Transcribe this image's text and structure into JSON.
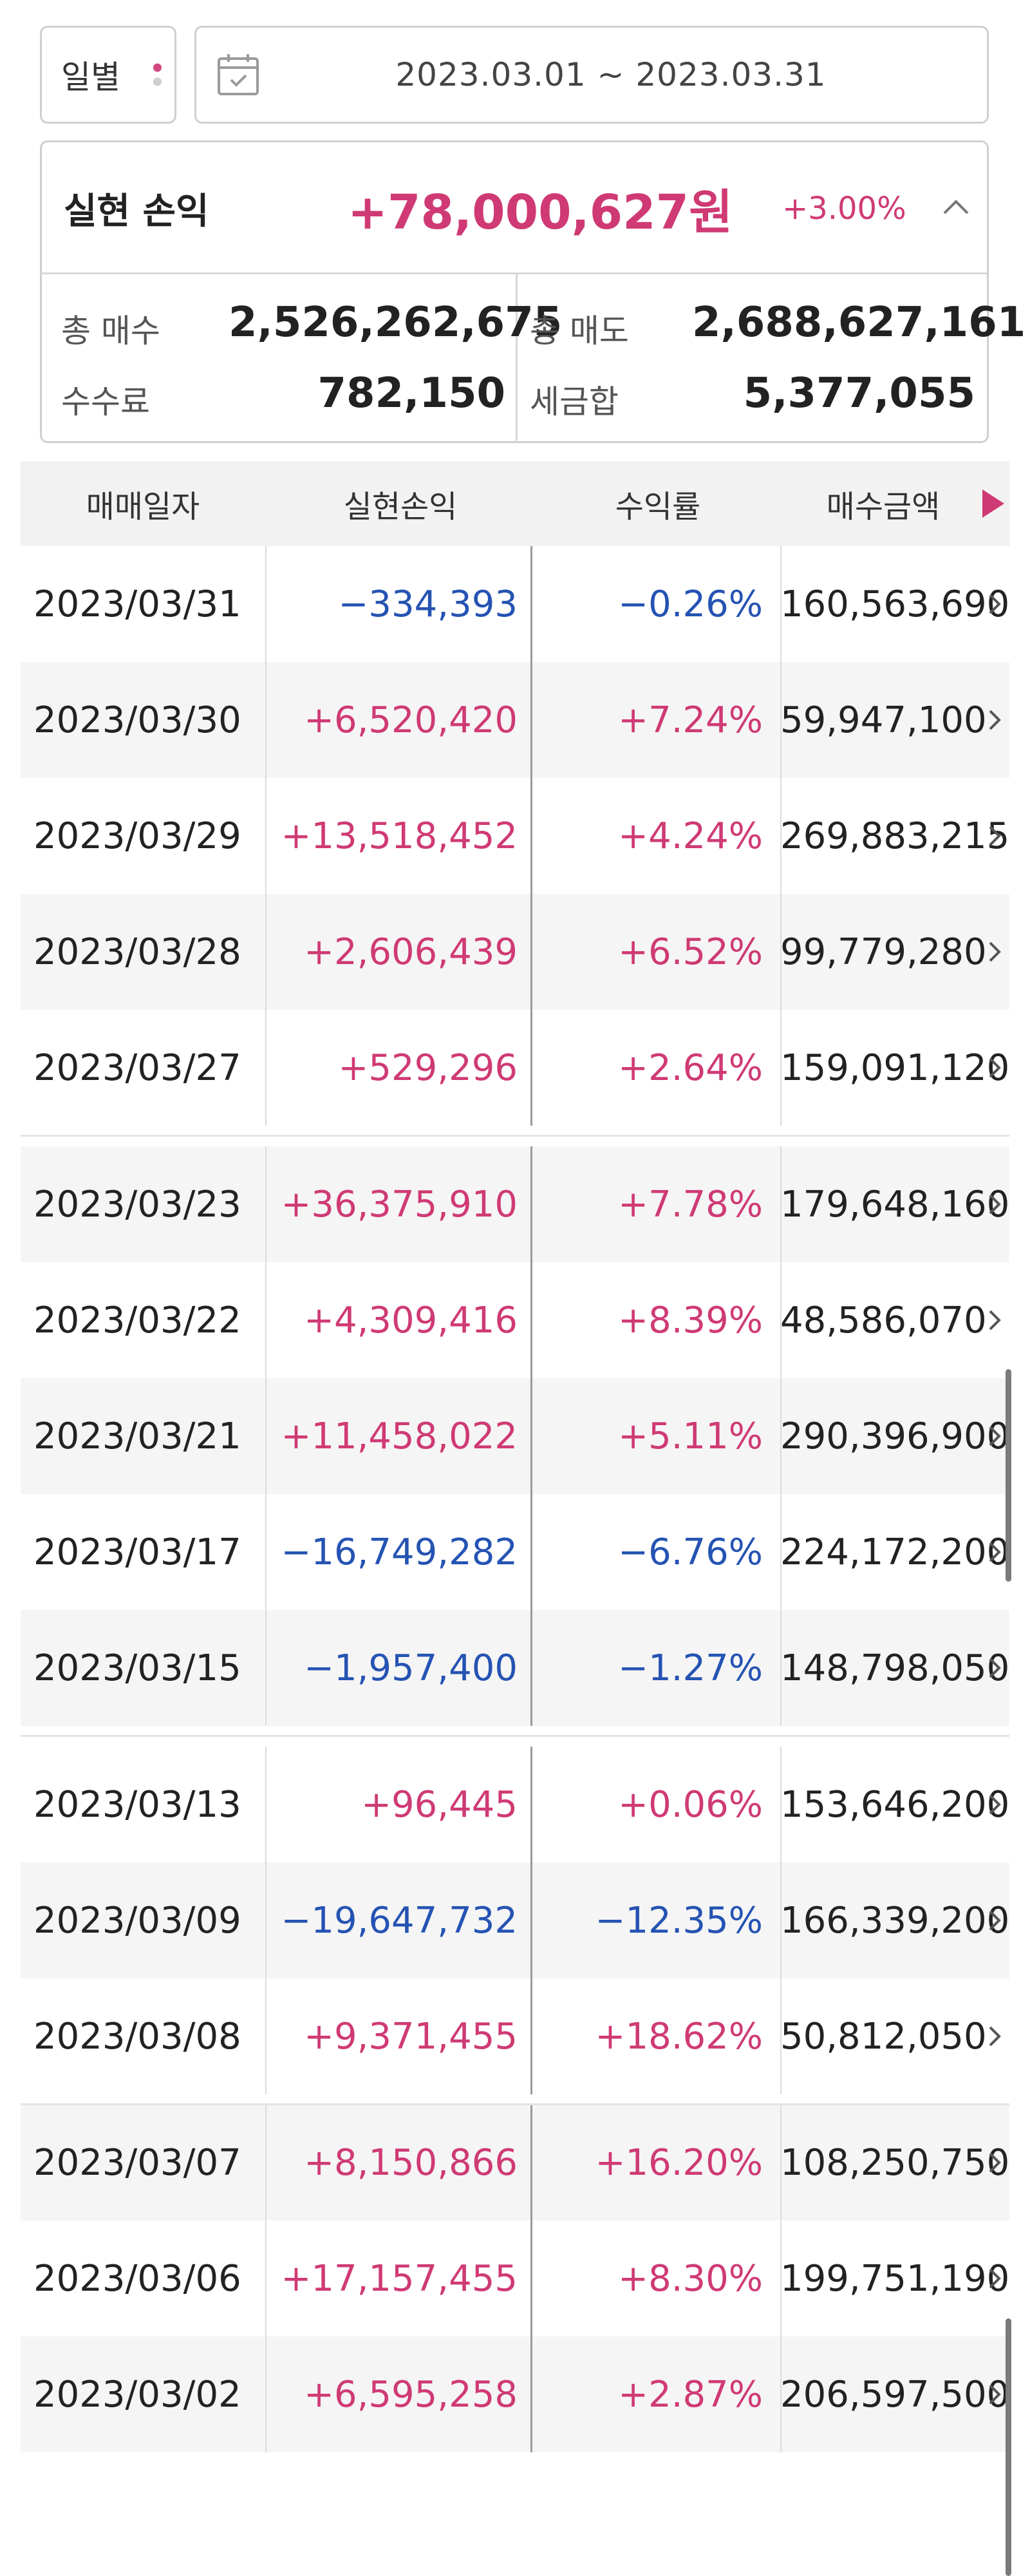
{
  "controls": {
    "period_label": "일별",
    "date_range": "2023.03.01 ~ 2023.03.31",
    "calendar_icon": "calendar-icon",
    "more_icon": "vertical-dots-icon"
  },
  "summary": {
    "title": "실현 손익",
    "amount": "+78,000,627원",
    "rate": "+3.00%",
    "toggle_icon": "chevron-up-icon",
    "total_buy_label": "총 매수",
    "total_buy_value": "2,526,262,675",
    "total_sell_label": "총 매도",
    "total_sell_value": "2,688,627,161",
    "fee_label": "수수료",
    "fee_value": "782,150",
    "tax_label": "세금합",
    "tax_value": "5,377,055"
  },
  "table": {
    "headers": [
      "매매일자",
      "실현손익",
      "수익률",
      "매수금액"
    ],
    "next_icon": "triangle-right-icon",
    "rows": [
      {
        "date": "2023/03/31",
        "profit": "−334,393",
        "rate": "−0.26%",
        "buy": "160,563,690",
        "sign": "neg"
      },
      {
        "date": "2023/03/30",
        "profit": "+6,520,420",
        "rate": "+7.24%",
        "buy": "59,947,100",
        "sign": "pos"
      },
      {
        "date": "2023/03/29",
        "profit": "+13,518,452",
        "rate": "+4.24%",
        "buy": "269,883,215",
        "sign": "pos"
      },
      {
        "date": "2023/03/28",
        "profit": "+2,606,439",
        "rate": "+6.52%",
        "buy": "99,779,280",
        "sign": "pos"
      },
      {
        "date": "2023/03/27",
        "profit": "+529,296",
        "rate": "+2.64%",
        "buy": "159,091,120",
        "sign": "pos"
      },
      {
        "date": "2023/03/23",
        "profit": "+36,375,910",
        "rate": "+7.78%",
        "buy": "179,648,160",
        "sign": "pos"
      },
      {
        "date": "2023/03/22",
        "profit": "+4,309,416",
        "rate": "+8.39%",
        "buy": "48,586,070",
        "sign": "pos"
      },
      {
        "date": "2023/03/21",
        "profit": "+11,458,022",
        "rate": "+5.11%",
        "buy": "290,396,900",
        "sign": "pos"
      },
      {
        "date": "2023/03/17",
        "profit": "−16,749,282",
        "rate": "−6.76%",
        "buy": "224,172,200",
        "sign": "neg"
      },
      {
        "date": "2023/03/15",
        "profit": "−1,957,400",
        "rate": "−1.27%",
        "buy": "148,798,050",
        "sign": "neg"
      },
      {
        "date": "2023/03/13",
        "profit": "+96,445",
        "rate": "+0.06%",
        "buy": "153,646,200",
        "sign": "pos"
      },
      {
        "date": "2023/03/09",
        "profit": "−19,647,732",
        "rate": "−12.35%",
        "buy": "166,339,200",
        "sign": "neg"
      },
      {
        "date": "2023/03/08",
        "profit": "+9,371,455",
        "rate": "+18.62%",
        "buy": "50,812,050",
        "sign": "pos"
      },
      {
        "date": "2023/03/07",
        "profit": "+8,150,866",
        "rate": "+16.20%",
        "buy": "108,250,750",
        "sign": "pos"
      },
      {
        "date": "2023/03/06",
        "profit": "+17,157,455",
        "rate": "+8.30%",
        "buy": "199,751,190",
        "sign": "pos"
      },
      {
        "date": "2023/03/02",
        "profit": "+6,595,258",
        "rate": "+2.87%",
        "buy": "206,597,500",
        "sign": "pos"
      }
    ]
  },
  "colors": {
    "positive": "#cf3a74",
    "negative": "#2553b3",
    "accent": "#cf3a74"
  }
}
